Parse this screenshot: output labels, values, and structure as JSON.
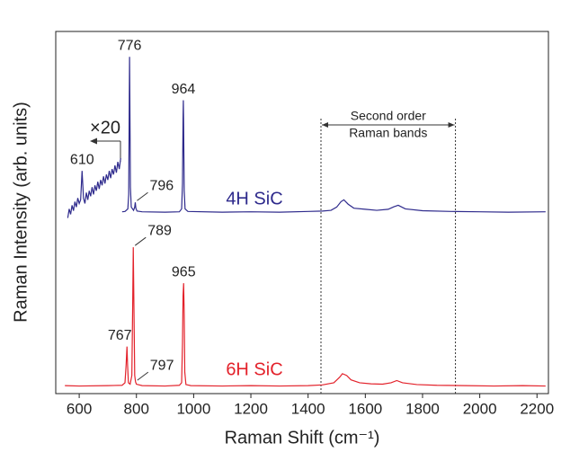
{
  "chart_data": {
    "type": "line",
    "x_label": "Raman Shift (cm⁻¹)",
    "y_label": "Raman Intensity (arb. units)",
    "xlim": [
      518,
      2240
    ],
    "xticks": [
      600,
      800,
      1000,
      1200,
      1400,
      1600,
      1800,
      2000,
      2200
    ],
    "ylim": [
      0,
      100
    ],
    "series": [
      {
        "name": "4H SiC",
        "color": "#2e2a8c",
        "x": [
          750,
          760,
          770,
          773,
          775,
          776,
          777,
          779,
          782,
          790,
          794,
          796,
          798,
          802,
          820,
          900,
          950,
          958,
          961,
          963,
          964,
          965,
          967,
          970,
          980,
          1100,
          1200,
          1300,
          1400,
          1450,
          1480,
          1500,
          1515,
          1525,
          1540,
          1560,
          1600,
          1640,
          1680,
          1700,
          1715,
          1740,
          1800,
          1900,
          2000,
          2100,
          2230
        ],
        "values": [
          50.2,
          50.3,
          51,
          55,
          80,
          93,
          82,
          57,
          51.5,
          50.6,
          51.5,
          52.8,
          51.2,
          50.4,
          50.2,
          50.1,
          50.2,
          51,
          58,
          76,
          81,
          74,
          56,
          51,
          50.3,
          50.1,
          50.2,
          50.1,
          50.3,
          50.4,
          50.6,
          51.5,
          53,
          53.5,
          52.3,
          51.2,
          50.9,
          50.6,
          50.9,
          51.6,
          52,
          51,
          50.5,
          50.3,
          50.2,
          50.1,
          50.2
        ],
        "peaks": [
          776,
          796,
          964
        ]
      },
      {
        "name": "6H SiC",
        "color": "#e3222b",
        "x": [
          550,
          600,
          700,
          750,
          760,
          764,
          767,
          769,
          772,
          778,
          784,
          787,
          789,
          791,
          794,
          797,
          800,
          820,
          900,
          950,
          958,
          961,
          963,
          965,
          967,
          969,
          973,
          990,
          1100,
          1200,
          1300,
          1400,
          1450,
          1490,
          1510,
          1520,
          1535,
          1550,
          1580,
          1620,
          1660,
          1690,
          1710,
          1730,
          1780,
          1850,
          1950,
          2050,
          2150,
          2230
        ],
        "values": [
          2.2,
          2.1,
          2.2,
          2.3,
          3,
          8,
          13,
          8,
          3,
          2.6,
          5,
          25,
          40.4,
          26,
          5,
          3.2,
          2.6,
          2.2,
          2.1,
          2.3,
          3,
          14,
          27,
          30.5,
          22,
          6,
          2.5,
          2.2,
          2.1,
          2.2,
          2.1,
          2.2,
          2.4,
          3,
          4.5,
          5.5,
          5,
          3.8,
          3,
          2.7,
          2.6,
          3,
          3.6,
          3,
          2.5,
          2.3,
          2.2,
          2.1,
          2.2,
          2.1
        ],
        "peaks": [
          767,
          789,
          797,
          965
        ]
      },
      {
        "color": "#2e2a8c",
        "x": [
          560,
          565,
          570,
          575,
          580,
          585,
          590,
          595,
          600,
          605,
          610,
          615,
          620,
          625,
          630,
          635,
          640,
          645,
          650,
          655,
          660,
          665,
          670,
          675,
          680,
          685,
          690,
          695,
          700,
          705,
          710,
          715,
          720,
          725,
          730,
          735,
          740,
          745
        ],
        "values": [
          48.5,
          51,
          49.5,
          52,
          50.5,
          53,
          51.5,
          54,
          52.5,
          53.5,
          61.5,
          54,
          52.5,
          55.5,
          53.5,
          56,
          54.5,
          57,
          55,
          57.5,
          56,
          58.5,
          56.5,
          59,
          57.5,
          60,
          58,
          60.5,
          59,
          61.5,
          59.5,
          62,
          60.5,
          63,
          61,
          64,
          62,
          65
        ],
        "peaks": [
          610
        ]
      }
    ],
    "magnification": "×20",
    "region": {
      "label": [
        "Second order",
        "Raman bands"
      ],
      "range": [
        1445,
        1915
      ]
    }
  }
}
